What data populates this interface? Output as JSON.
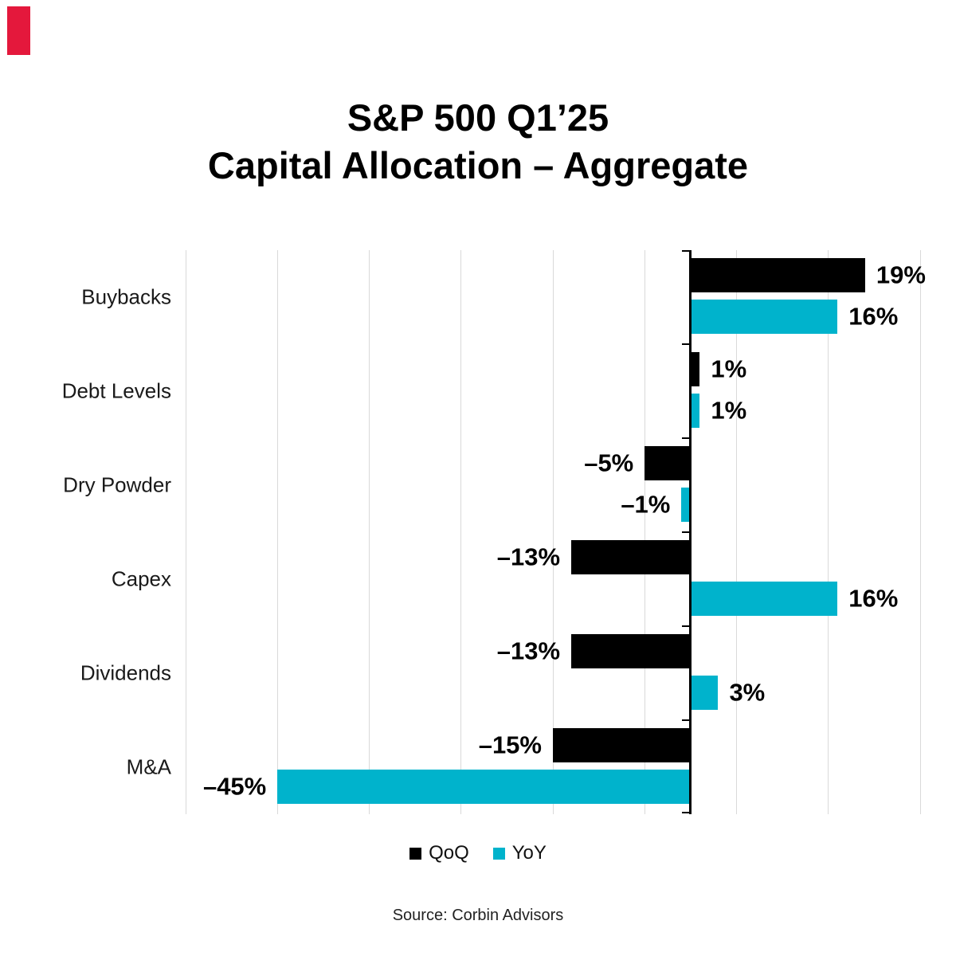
{
  "page": {
    "background": "#ffffff",
    "brand_accent_color": "#e4183c"
  },
  "title": {
    "line1": "S&P 500 Q1’25",
    "line2": "Capital Allocation – Aggregate"
  },
  "legend": [
    {
      "name": "QoQ",
      "color": "#000000"
    },
    {
      "name": "YoY",
      "color": "#00b3cc"
    }
  ],
  "source": "Source: Corbin Advisors",
  "chart_data": {
    "type": "bar",
    "orientation": "horizontal",
    "title": "S&P 500 Q1’25 Capital Allocation – Aggregate",
    "categories": [
      "Buybacks",
      "Debt Levels",
      "Dry Powder",
      "Capex",
      "Dividends",
      "M&A"
    ],
    "series": [
      {
        "name": "QoQ",
        "color": "#000000",
        "values": [
          19,
          1,
          -5,
          -13,
          -13,
          -15
        ],
        "labels": [
          "19%",
          "1%",
          "–5%",
          "–13%",
          "–13%",
          "–15%"
        ]
      },
      {
        "name": "YoY",
        "color": "#00b3cc",
        "values": [
          16,
          1,
          -1,
          16,
          3,
          -45
        ],
        "labels": [
          "16%",
          "1%",
          "–1%",
          "16%",
          "3%",
          "–45%"
        ]
      }
    ],
    "xlim": [
      -55,
      25
    ],
    "grid_step": 10,
    "grid": true,
    "gridline_color": "#d9d9d9",
    "value_labels": true,
    "legend_position": "bottom"
  }
}
